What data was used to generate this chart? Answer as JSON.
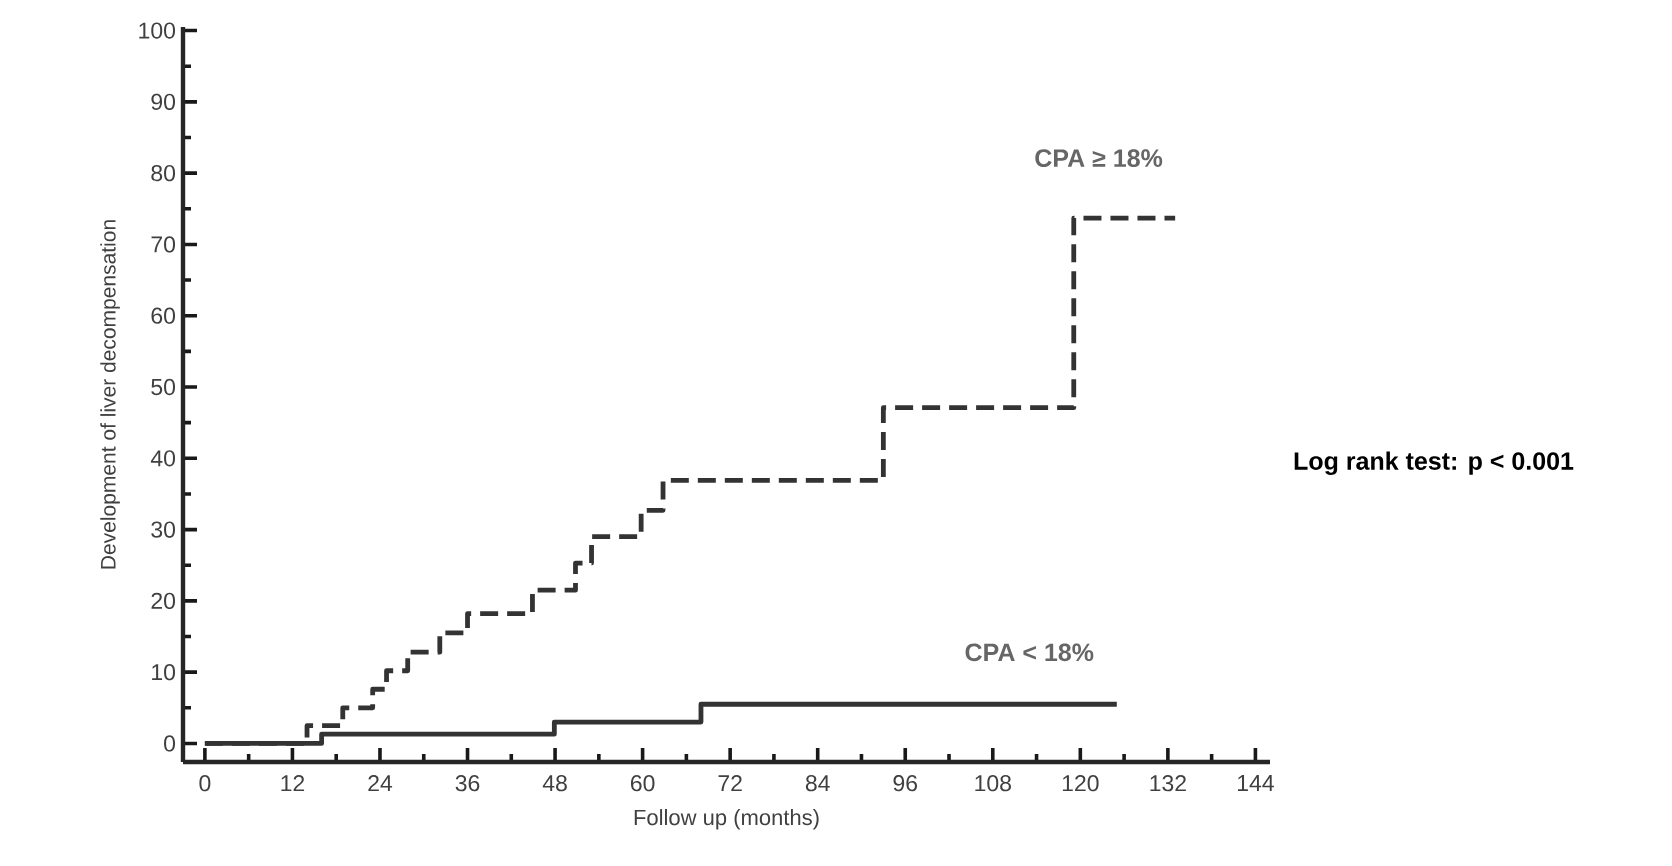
{
  "chart_data": {
    "type": "step",
    "xlabel": "Follow up (months)",
    "ylabel": "Development of liver decompensation",
    "annotations": [
      "Log rank test: p < 0.001"
    ],
    "xlim": [
      -3,
      146
    ],
    "ylim": [
      -2.6,
      100.5
    ],
    "xticks": [
      0,
      12,
      24,
      36,
      48,
      60,
      72,
      84,
      96,
      108,
      120,
      132,
      144
    ],
    "yticks": [
      0,
      10,
      20,
      30,
      40,
      50,
      60,
      70,
      80,
      90,
      100
    ],
    "series": [
      {
        "name": "CPA ≥ 18%",
        "color": "#333333",
        "line_style": "dashed",
        "x": [
          0,
          14,
          18.9,
          23,
          24.9,
          27.8,
          32.2,
          36,
          44.9,
          50.8,
          53,
          59.8,
          62.8,
          93,
          119.1,
          133
        ],
        "values": [
          0,
          2.5,
          5,
          7.6,
          10.2,
          12.8,
          15.5,
          18.2,
          21.5,
          25.3,
          29,
          32.7,
          36.9,
          47.1,
          73.7,
          73.7
        ]
      },
      {
        "name": "CPA < 18%",
        "color": "#333333",
        "line_style": "solid",
        "x": [
          0,
          16,
          47.9,
          68,
          125
        ],
        "values": [
          0,
          1.3,
          3,
          5.5,
          5.5
        ]
      }
    ]
  }
}
